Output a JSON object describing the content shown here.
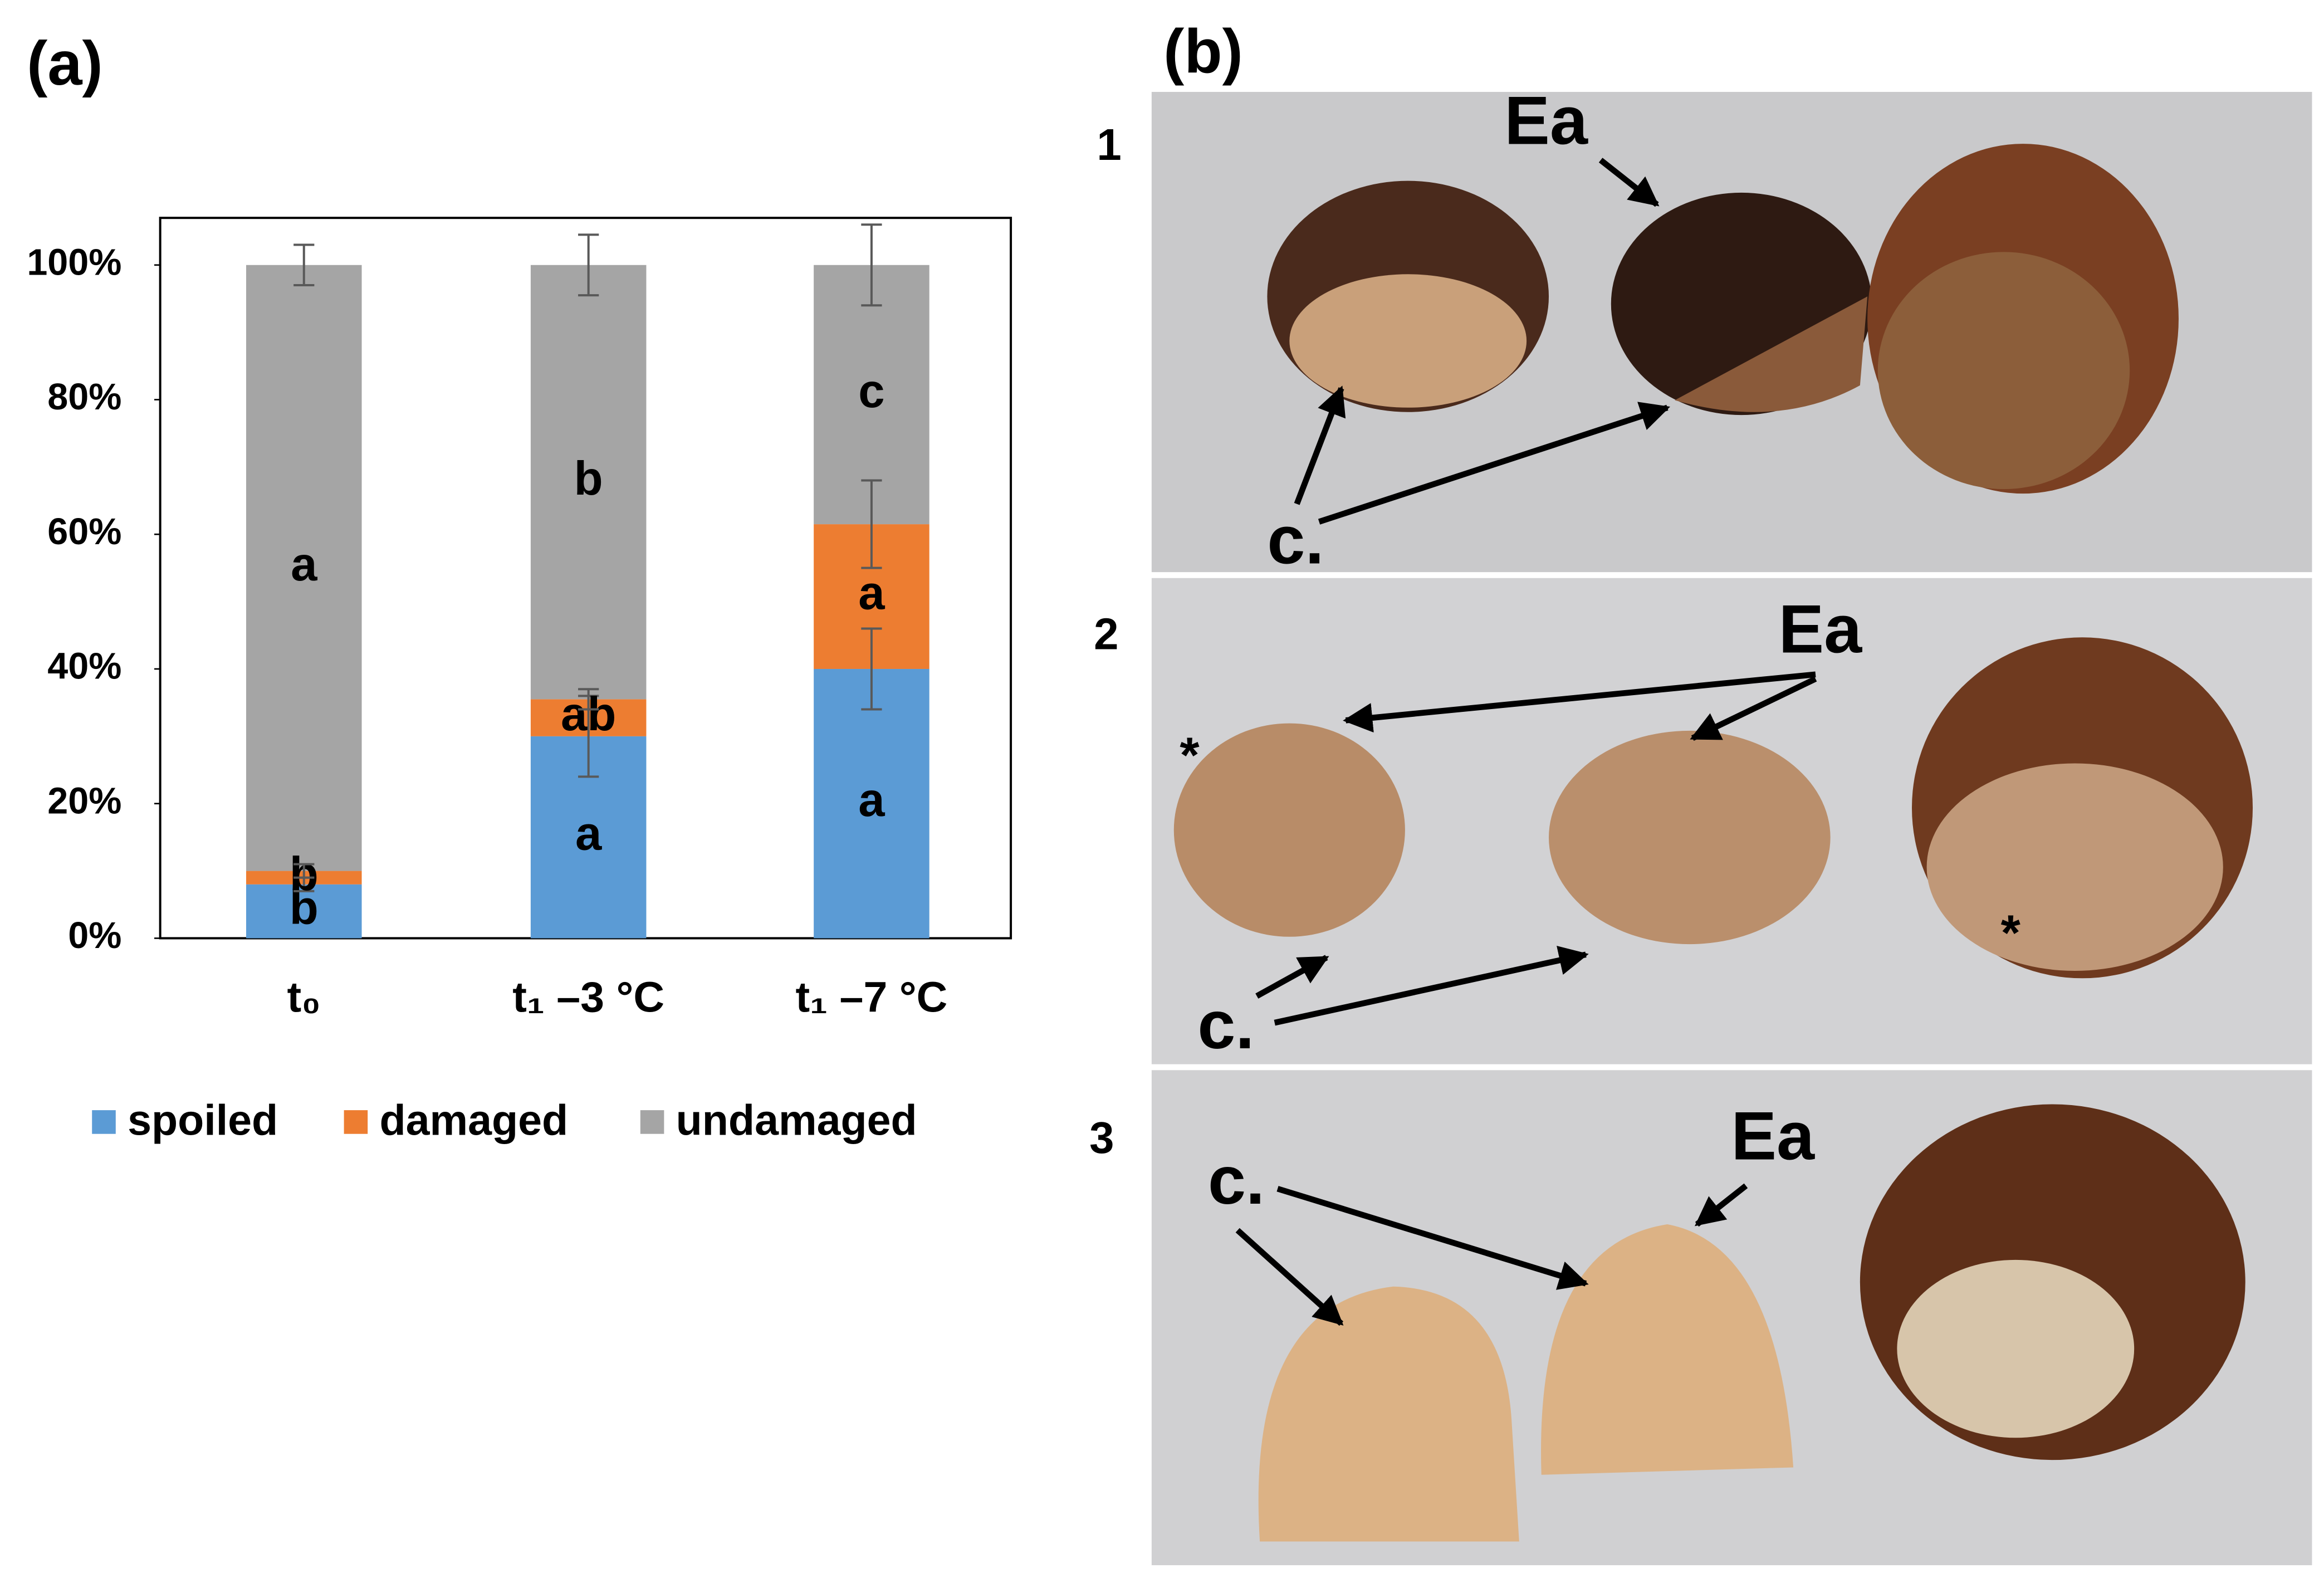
{
  "chart_data": {
    "type": "bar",
    "stacked": true,
    "panel_label": "(a)",
    "categories": [
      "t₀",
      "t₁ –3 °C",
      "t₁ –7 °C"
    ],
    "series": [
      {
        "name": "spoiled",
        "color": "#5b9bd5",
        "values": [
          8,
          30,
          40
        ],
        "errors": [
          1,
          6,
          6
        ],
        "letters": [
          "b",
          "a",
          "a"
        ]
      },
      {
        "name": "damaged",
        "color": "#ed7d31",
        "values": [
          2,
          5.5,
          21.5
        ],
        "errors": [
          1,
          1.5,
          6.5
        ],
        "letters": [
          "b",
          "ab",
          "a"
        ]
      },
      {
        "name": "undamaged",
        "color": "#a5a5a5",
        "values": [
          90,
          64.5,
          38.5
        ],
        "errors": [
          3,
          4.5,
          6
        ],
        "letters": [
          "a",
          "b",
          "c"
        ]
      }
    ],
    "ylim": [
      0,
      107
    ],
    "yticks": [
      {
        "value": 0,
        "label": "0%"
      },
      {
        "value": 20,
        "label": "20%"
      },
      {
        "value": 40,
        "label": "40%"
      },
      {
        "value": 60,
        "label": "60%"
      },
      {
        "value": 80,
        "label": "80%"
      },
      {
        "value": 100,
        "label": "100%"
      }
    ],
    "grid": false,
    "legend": "bottom"
  },
  "panel_b": {
    "label": "(b)",
    "photos": [
      {
        "number": "1",
        "annotations": [
          "Ea",
          "c."
        ]
      },
      {
        "number": "2",
        "annotations": [
          "Ea",
          "c.",
          "*",
          "*"
        ]
      },
      {
        "number": "3",
        "annotations": [
          "Ea",
          "c."
        ]
      }
    ]
  }
}
